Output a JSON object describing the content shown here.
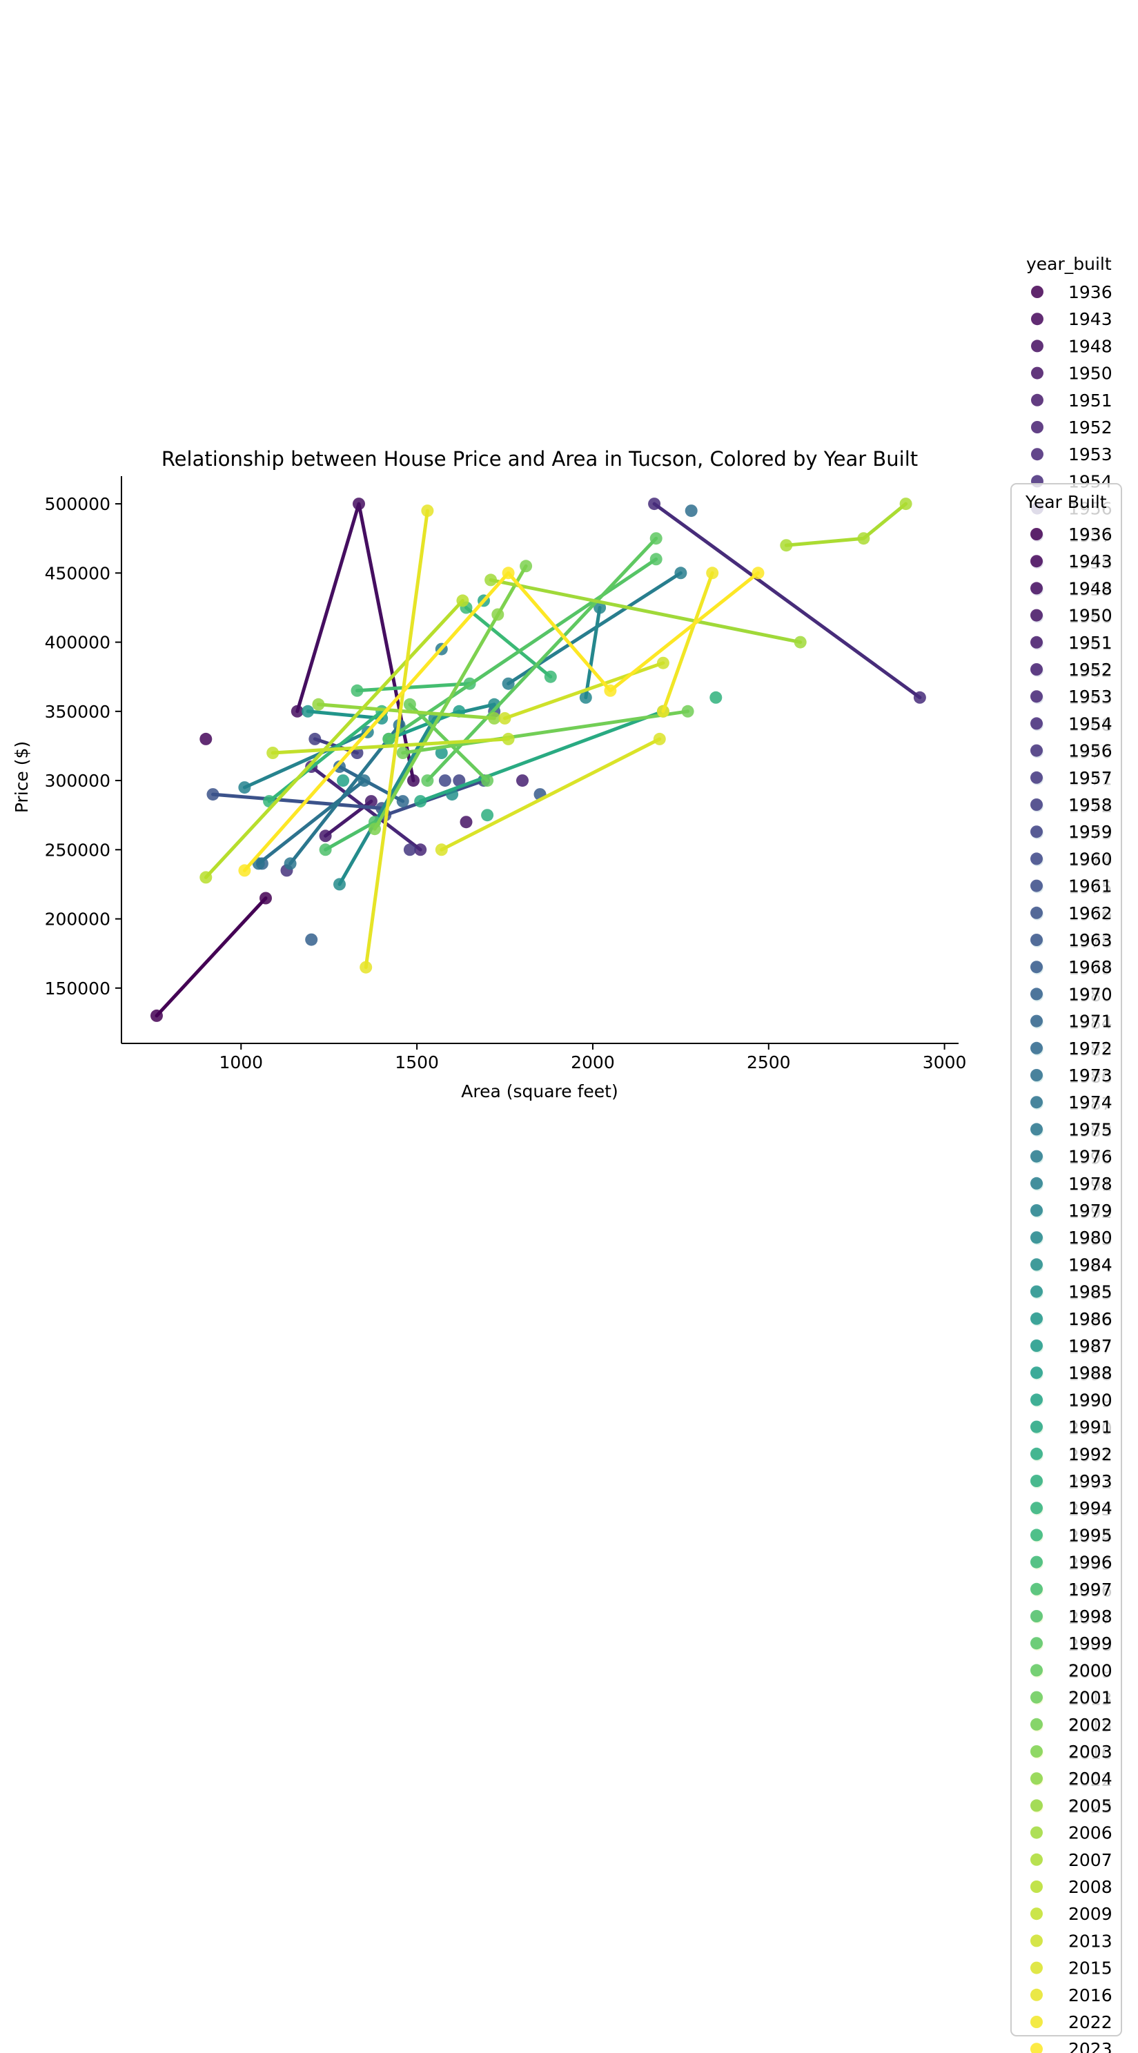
{
  "chart_data": {
    "type": "line",
    "title": "Relationship between House Price and Area in Tucson, Colored by Year Built",
    "xlabel": "Area (square feet)",
    "ylabel": "Price ($)",
    "xlim": [
      660,
      3040
    ],
    "ylim": [
      110000,
      520000
    ],
    "xticks": [
      1000,
      1500,
      2000,
      2500,
      3000
    ],
    "yticks": [
      150000,
      200000,
      250000,
      300000,
      350000,
      400000,
      450000,
      500000
    ],
    "xtick_labels": [
      "1000",
      "1500",
      "2000",
      "2500",
      "3000"
    ],
    "ytick_labels": [
      "150000",
      "200000",
      "250000",
      "300000",
      "350000",
      "400000",
      "450000",
      "500000"
    ],
    "grid": false,
    "legend_main_title": "year_built",
    "legend_overlay_title": "Year Built",
    "legend_placement": "right, outside plot",
    "palette": "viridis",
    "series": [
      {
        "name": "1936",
        "x": [
          760,
          1070
        ],
        "y": [
          130000,
          215000
        ]
      },
      {
        "name": "1943",
        "x": [
          900
        ],
        "y": [
          330000
        ]
      },
      {
        "name": "1948",
        "x": [
          1160,
          1335,
          1490
        ],
        "y": [
          350000,
          500000,
          300000
        ]
      },
      {
        "name": "1950",
        "x": [
          1640
        ],
        "y": [
          270000
        ]
      },
      {
        "name": "1951",
        "x": [
          1240,
          1370
        ],
        "y": [
          260000,
          285000
        ]
      },
      {
        "name": "1952",
        "x": [
          1800
        ],
        "y": [
          300000
        ]
      },
      {
        "name": "1953",
        "x": [
          1200,
          1510
        ],
        "y": [
          310000,
          250000
        ]
      },
      {
        "name": "1954",
        "x": [
          2175,
          2930
        ],
        "y": [
          500000,
          360000
        ]
      },
      {
        "name": "1956",
        "x": [
          1130
        ],
        "y": [
          235000
        ]
      },
      {
        "name": "1957",
        "x": [
          1480
        ],
        "y": [
          250000
        ]
      },
      {
        "name": "1958",
        "x": [
          1210,
          1330
        ],
        "y": [
          330000,
          320000
        ]
      },
      {
        "name": "1959",
        "x": [
          1620
        ],
        "y": [
          300000
        ]
      },
      {
        "name": "1960",
        "x": [
          1580
        ],
        "y": [
          300000
        ]
      },
      {
        "name": "1961",
        "x": [
          1410,
          1690
        ],
        "y": [
          275000,
          300000
        ]
      },
      {
        "name": "1962",
        "x": [
          920,
          1400
        ],
        "y": [
          290000,
          280000
        ]
      },
      {
        "name": "1963",
        "x": [
          1720
        ],
        "y": [
          350000
        ]
      },
      {
        "name": "1968",
        "x": [
          1850
        ],
        "y": [
          290000
        ]
      },
      {
        "name": "1970",
        "x": [
          1200
        ],
        "y": [
          185000
        ]
      },
      {
        "name": "1971",
        "x": [
          1060
        ],
        "y": [
          240000
        ]
      },
      {
        "name": "1972",
        "x": [
          1280,
          1460
        ],
        "y": [
          310000,
          285000
        ]
      },
      {
        "name": "1973",
        "x": [
          2280
        ],
        "y": [
          495000
        ]
      },
      {
        "name": "1974",
        "x": [
          1050,
          1350
        ],
        "y": [
          240000,
          300000
        ]
      },
      {
        "name": "1975",
        "x": [
          1140,
          1450
        ],
        "y": [
          240000,
          340000
        ]
      },
      {
        "name": "1976",
        "x": [
          1570
        ],
        "y": [
          395000
        ]
      },
      {
        "name": "1978",
        "x": [
          1760,
          2250
        ],
        "y": [
          370000,
          450000
        ]
      },
      {
        "name": "1979",
        "x": [
          1010,
          1360
        ],
        "y": [
          295000,
          335000
        ]
      },
      {
        "name": "1980",
        "x": [
          1980,
          2020
        ],
        "y": [
          360000,
          425000
        ]
      },
      {
        "name": "1984",
        "x": [
          1280,
          1550,
          1720
        ],
        "y": [
          225000,
          345000,
          355000
        ]
      },
      {
        "name": "1985",
        "x": [
          1600
        ],
        "y": [
          290000
        ]
      },
      {
        "name": "1986",
        "x": [
          1190,
          1400
        ],
        "y": [
          350000,
          345000
        ]
      },
      {
        "name": "1987",
        "x": [
          1570
        ],
        "y": [
          320000
        ]
      },
      {
        "name": "1988",
        "x": [
          1420,
          1620
        ],
        "y": [
          330000,
          350000
        ]
      },
      {
        "name": "1990",
        "x": [
          1290
        ],
        "y": [
          300000
        ]
      },
      {
        "name": "1991",
        "x": [
          1690
        ],
        "y": [
          430000
        ]
      },
      {
        "name": "1992",
        "x": [
          1510,
          2200
        ],
        "y": [
          285000,
          350000
        ]
      },
      {
        "name": "1993",
        "x": [
          1700
        ],
        "y": [
          275000
        ]
      },
      {
        "name": "1994",
        "x": [
          2350
        ],
        "y": [
          360000
        ]
      },
      {
        "name": "1995",
        "x": [
          1080,
          1400
        ],
        "y": [
          285000,
          350000
        ]
      },
      {
        "name": "1996",
        "x": [
          1640,
          1880
        ],
        "y": [
          425000,
          375000
        ]
      },
      {
        "name": "1997",
        "x": [
          1330,
          1650
        ],
        "y": [
          365000,
          370000
        ]
      },
      {
        "name": "1998",
        "x": [
          1240,
          1380
        ],
        "y": [
          250000,
          270000
        ]
      },
      {
        "name": "1999",
        "x": [
          1420,
          2180
        ],
        "y": [
          330000,
          460000
        ]
      },
      {
        "name": "2000",
        "x": [
          1530,
          2180
        ],
        "y": [
          300000,
          475000
        ]
      },
      {
        "name": "2001",
        "x": [
          1480,
          1700
        ],
        "y": [
          355000,
          300000
        ]
      },
      {
        "name": "2002",
        "x": [
          1460,
          2270
        ],
        "y": [
          320000,
          350000
        ]
      },
      {
        "name": "2003",
        "x": [
          1380,
          1810
        ],
        "y": [
          265000,
          455000
        ]
      },
      {
        "name": "2004",
        "x": [
          1730
        ],
        "y": [
          420000
        ]
      },
      {
        "name": "2005",
        "x": [
          1220,
          1720
        ],
        "y": [
          355000,
          345000
        ]
      },
      {
        "name": "2006",
        "x": [
          1710,
          2590
        ],
        "y": [
          445000,
          400000
        ]
      },
      {
        "name": "2007",
        "x": [
          2550,
          2770,
          2890
        ],
        "y": [
          470000,
          475000,
          500000
        ]
      },
      {
        "name": "2008",
        "x": [
          900,
          1630
        ],
        "y": [
          230000,
          430000
        ]
      },
      {
        "name": "2009",
        "x": [
          1090,
          1760
        ],
        "y": [
          320000,
          330000
        ]
      },
      {
        "name": "2013",
        "x": [
          1750,
          2200
        ],
        "y": [
          345000,
          385000
        ]
      },
      {
        "name": "2015",
        "x": [
          1570,
          2190
        ],
        "y": [
          250000,
          330000
        ]
      },
      {
        "name": "2016",
        "x": [
          1355,
          1530
        ],
        "y": [
          165000,
          495000
        ]
      },
      {
        "name": "2022",
        "x": [
          2200,
          2340
        ],
        "y": [
          350000,
          450000
        ]
      },
      {
        "name": "2023",
        "x": [
          1010,
          1760,
          2050,
          2470
        ],
        "y": [
          235000,
          450000,
          365000,
          450000
        ]
      }
    ]
  }
}
